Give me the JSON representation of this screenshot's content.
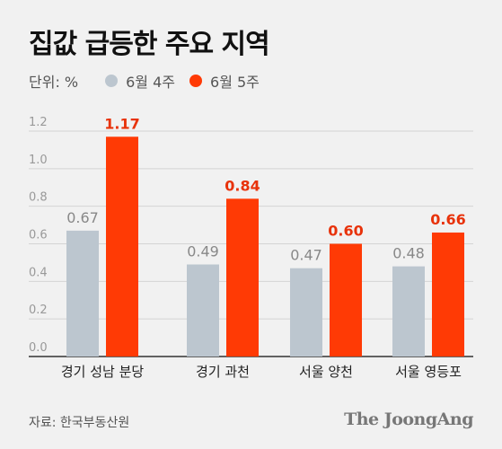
{
  "title": "집값 급등한 주요 지역",
  "unit_label": "단위: %",
  "source": "자료: 한국부동산원",
  "brand": "The JoongAng",
  "colors": {
    "series1": "#bcc6cf",
    "series2": "#ff3a05",
    "label1": "#888888",
    "label2": "#e8320a"
  },
  "chart_data": {
    "type": "bar",
    "categories": [
      "경기 성남 분당",
      "경기 과천",
      "서울 양천",
      "서울 영등포"
    ],
    "series": [
      {
        "name": "6월 4주",
        "values": [
          0.67,
          0.49,
          0.47,
          0.48
        ],
        "labels": [
          "0.67",
          "0.49",
          "0.47",
          "0.48"
        ]
      },
      {
        "name": "6월 5주",
        "values": [
          1.17,
          0.84,
          0.6,
          0.66
        ],
        "labels": [
          "1.17",
          "0.84",
          "0.60",
          "0.66"
        ]
      }
    ],
    "yticks": [
      "0.0",
      "0.2",
      "0.4",
      "0.6",
      "0.8",
      "1.0",
      "1.2"
    ],
    "ylim": [
      0,
      1.2
    ],
    "grid": true
  }
}
